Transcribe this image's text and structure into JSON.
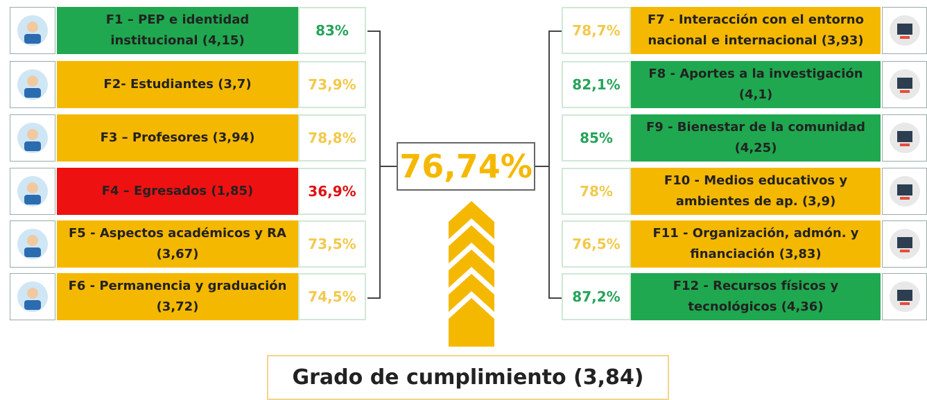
{
  "center": "76,74%",
  "footer": "Grado de cumplimiento (3,84)",
  "left": [
    {
      "label": "F1 – PEP e identidad institucional (4,15)",
      "percent": "83%",
      "color": "#1fa84f"
    },
    {
      "label": "F2- Estudiantes (3,7)",
      "percent": "73,9%",
      "color": "#f5b800"
    },
    {
      "label": "F3 – Profesores (3,94)",
      "percent": "78,8%",
      "color": "#f5b800"
    },
    {
      "label": "F4 – Egresados (1,85)",
      "percent": "36,9%",
      "color": "#ee1111"
    },
    {
      "label": "F5 - Aspectos académicos y RA (3,67)",
      "percent": "73,5%",
      "color": "#f5b800"
    },
    {
      "label": "F6 - Permanencia y graduación (3,72)",
      "percent": "74,5%",
      "color": "#f5b800"
    }
  ],
  "right": [
    {
      "label": "F7 - Interacción con el entorno nacional e internacional (3,93)",
      "percent": "78,7%",
      "color": "#f5b800"
    },
    {
      "label": "F8 - Aportes a la investigación (4,1)",
      "percent": "82,1%",
      "color": "#1fa84f"
    },
    {
      "label": "F9 - Bienestar de la comunidad (4,25)",
      "percent": "85%",
      "color": "#1fa84f"
    },
    {
      "label": "F10 - Medios educativos y ambientes de ap. (3,9)",
      "percent": "78%",
      "color": "#f5b800"
    },
    {
      "label": "F11 - Organización, admón. y financiación (3,83)",
      "percent": "76,5%",
      "color": "#f5b800"
    },
    {
      "label": "F12 - Recursos físicos y tecnológicos (4,36)",
      "percent": "87,2%",
      "color": "#1fa84f"
    }
  ]
}
